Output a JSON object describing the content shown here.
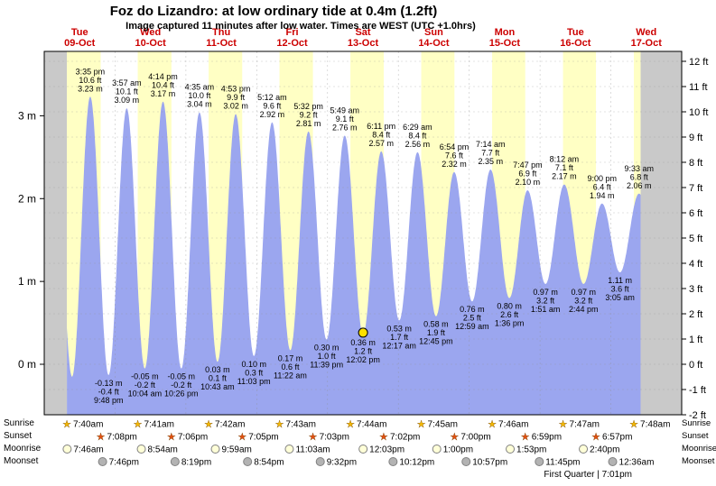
{
  "title": "Foz do Lizandro: at low ordinary tide at 0.4m (1.2ft)",
  "subtitle": "Image captured 11 minutes after low water. Times are WEST (UTC +1.0hrs)",
  "colors": {
    "outside": "#c9c9c9",
    "night_band": "#ffffff",
    "day_band": "#ffffc4",
    "tide_fill": "#9ba6ef",
    "grid": "#8f8f8f",
    "day_label": "#cc0000",
    "current_marker": "#ffe000",
    "sunrise_star": "#f2b705",
    "sunset_star": "#e04f10",
    "moonrise_fill": "#ffffd8",
    "moonset_fill": "#b3b3b3"
  },
  "chart_data": {
    "type": "area",
    "title": "Foz do Lizandro: at low ordinary tide at 0.4m (1.2ft)",
    "x_axis": {
      "days": [
        {
          "name": "Tue",
          "date": "09-Oct"
        },
        {
          "name": "Wed",
          "date": "10-Oct"
        },
        {
          "name": "Thu",
          "date": "11-Oct"
        },
        {
          "name": "Fri",
          "date": "12-Oct"
        },
        {
          "name": "Sat",
          "date": "13-Oct"
        },
        {
          "name": "Sun",
          "date": "14-Oct"
        },
        {
          "name": "Mon",
          "date": "15-Oct"
        },
        {
          "name": "Tue",
          "date": "16-Oct"
        },
        {
          "name": "Wed",
          "date": "17-Oct"
        }
      ]
    },
    "y_axis_left": {
      "unit": "m",
      "ticks": [
        0,
        1,
        2,
        3
      ]
    },
    "y_axis_right": {
      "unit": "ft",
      "min": -2,
      "max": 12
    },
    "data_start": {
      "day": 9,
      "time": "07:40"
    },
    "data_end": {
      "day": 17,
      "time": "10:05"
    },
    "tide_events": [
      {
        "type": "high",
        "day": 9,
        "time": "15:35",
        "height_m": 3.23,
        "labels": [
          "3:35 pm",
          "10.6 ft",
          "3.23 m"
        ]
      },
      {
        "type": "low",
        "day": 9,
        "time": "21:48",
        "height_m": -0.13,
        "labels": [
          "-0.13 m",
          "-0.4 ft",
          "9:48 pm"
        ]
      },
      {
        "type": "high",
        "day": 10,
        "time": "03:57",
        "height_m": 3.09,
        "labels": [
          "3:57 am",
          "10.1 ft",
          "3.09 m"
        ]
      },
      {
        "type": "low",
        "day": 10,
        "time": "10:04",
        "height_m": -0.05,
        "labels": [
          "-0.05 m",
          "-0.2 ft",
          "10:04 am"
        ]
      },
      {
        "type": "high",
        "day": 10,
        "time": "16:14",
        "height_m": 3.17,
        "labels": [
          "4:14 pm",
          "10.4 ft",
          "3.17 m"
        ]
      },
      {
        "type": "low",
        "day": 10,
        "time": "22:26",
        "height_m": -0.05,
        "labels": [
          "-0.05 m",
          "-0.2 ft",
          "10:26 pm"
        ]
      },
      {
        "type": "high",
        "day": 11,
        "time": "04:35",
        "height_m": 3.04,
        "labels": [
          "4:35 am",
          "10.0 ft",
          "3.04 m"
        ]
      },
      {
        "type": "low",
        "day": 11,
        "time": "10:43",
        "height_m": 0.03,
        "labels": [
          "0.03 m",
          "0.1 ft",
          "10:43 am"
        ]
      },
      {
        "type": "high",
        "day": 11,
        "time": "16:53",
        "height_m": 3.02,
        "labels": [
          "4:53 pm",
          "9.9 ft",
          "3.02 m"
        ]
      },
      {
        "type": "low",
        "day": 11,
        "time": "23:03",
        "height_m": 0.1,
        "labels": [
          "0.10 m",
          "0.3 ft",
          "11:03 pm"
        ]
      },
      {
        "type": "high",
        "day": 12,
        "time": "05:12",
        "height_m": 2.92,
        "labels": [
          "5:12 am",
          "9.6 ft",
          "2.92 m"
        ]
      },
      {
        "type": "low",
        "day": 12,
        "time": "11:22",
        "height_m": 0.17,
        "labels": [
          "0.17 m",
          "0.6 ft",
          "11:22 am"
        ]
      },
      {
        "type": "high",
        "day": 12,
        "time": "17:32",
        "height_m": 2.81,
        "labels": [
          "5:32 pm",
          "9.2 ft",
          "2.81 m"
        ]
      },
      {
        "type": "low",
        "day": 12,
        "time": "23:39",
        "height_m": 0.3,
        "labels": [
          "0.30 m",
          "1.0 ft",
          "11:39 pm"
        ]
      },
      {
        "type": "high",
        "day": 13,
        "time": "05:49",
        "height_m": 2.76,
        "labels": [
          "5:49 am",
          "9.1 ft",
          "2.76 m"
        ]
      },
      {
        "type": "low",
        "day": 13,
        "time": "12:02",
        "height_m": 0.36,
        "labels": [
          "0.36 m",
          "1.2 ft",
          "12:02 pm"
        ]
      },
      {
        "type": "high",
        "day": 13,
        "time": "18:11",
        "height_m": 2.57,
        "labels": [
          "6:11 pm",
          "8.4 ft",
          "2.57 m"
        ]
      },
      {
        "type": "low",
        "day": 14,
        "time": "00:17",
        "height_m": 0.53,
        "labels": [
          "0.53 m",
          "1.7 ft",
          "12:17 am"
        ]
      },
      {
        "type": "high",
        "day": 14,
        "time": "06:29",
        "height_m": 2.56,
        "labels": [
          "6:29 am",
          "8.4 ft",
          "2.56 m"
        ]
      },
      {
        "type": "low",
        "day": 14,
        "time": "12:45",
        "height_m": 0.58,
        "labels": [
          "0.58 m",
          "1.9 ft",
          "12:45 pm"
        ]
      },
      {
        "type": "high",
        "day": 14,
        "time": "18:54",
        "height_m": 2.32,
        "labels": [
          "6:54 pm",
          "7.6 ft",
          "2.32 m"
        ]
      },
      {
        "type": "low",
        "day": 15,
        "time": "00:59",
        "height_m": 0.76,
        "labels": [
          "0.76 m",
          "2.5 ft",
          "12:59 am"
        ]
      },
      {
        "type": "high",
        "day": 15,
        "time": "07:14",
        "height_m": 2.35,
        "labels": [
          "7:14 am",
          "7.7 ft",
          "2.35 m"
        ]
      },
      {
        "type": "low",
        "day": 15,
        "time": "13:36",
        "height_m": 0.8,
        "labels": [
          "0.80 m",
          "2.6 ft",
          "1:36 pm"
        ]
      },
      {
        "type": "high",
        "day": 15,
        "time": "19:47",
        "height_m": 2.1,
        "labels": [
          "7:47 pm",
          "6.9 ft",
          "2.10 m"
        ]
      },
      {
        "type": "low",
        "day": 16,
        "time": "01:51",
        "height_m": 0.97,
        "labels": [
          "0.97 m",
          "3.2 ft",
          "1:51 am"
        ]
      },
      {
        "type": "high",
        "day": 16,
        "time": "08:12",
        "height_m": 2.17,
        "labels": [
          "8:12 am",
          "7.1 ft",
          "2.17 m"
        ]
      },
      {
        "type": "low",
        "day": 16,
        "time": "14:44",
        "height_m": 0.97,
        "labels": [
          "0.97 m",
          "3.2 ft",
          "2:44 pm"
        ]
      },
      {
        "type": "high",
        "day": 16,
        "time": "21:00",
        "height_m": 1.94,
        "labels": [
          "9:00 pm",
          "6.4 ft",
          "1.94 m"
        ]
      },
      {
        "type": "low",
        "day": 17,
        "time": "03:05",
        "height_m": 1.11,
        "labels": [
          "1.11 m",
          "3.6 ft",
          "3:05 am"
        ]
      },
      {
        "type": "high",
        "day": 17,
        "time": "09:33",
        "height_m": 2.06,
        "labels": [
          "9:33 am",
          "6.8 ft",
          "2.06 m"
        ]
      }
    ],
    "current_event_index": 15,
    "offscreen_curve_padding": [
      {
        "day": 9,
        "time": "03:15",
        "height_m": 3.05
      },
      {
        "day": 9,
        "time": "09:25",
        "height_m": -0.15
      },
      {
        "day": 17,
        "time": "16:00",
        "height_m": 1.2
      }
    ]
  },
  "astro": {
    "rows": [
      {
        "id": "sunrise",
        "label": "Sunrise",
        "icon": "sunrise-star-icon",
        "events": [
          {
            "day": 9,
            "time": "07:40",
            "label": "7:40am"
          },
          {
            "day": 10,
            "time": "07:41",
            "label": "7:41am"
          },
          {
            "day": 11,
            "time": "07:42",
            "label": "7:42am"
          },
          {
            "day": 12,
            "time": "07:43",
            "label": "7:43am"
          },
          {
            "day": 13,
            "time": "07:44",
            "label": "7:44am"
          },
          {
            "day": 14,
            "time": "07:45",
            "label": "7:45am"
          },
          {
            "day": 15,
            "time": "07:46",
            "label": "7:46am"
          },
          {
            "day": 16,
            "time": "07:47",
            "label": "7:47am"
          },
          {
            "day": 17,
            "time": "07:48",
            "label": "7:48am"
          }
        ]
      },
      {
        "id": "sunset",
        "label": "Sunset",
        "icon": "sunset-star-icon",
        "events": [
          {
            "day": 9,
            "time": "19:08",
            "label": "7:08pm"
          },
          {
            "day": 10,
            "time": "19:06",
            "label": "7:06pm"
          },
          {
            "day": 11,
            "time": "19:05",
            "label": "7:05pm"
          },
          {
            "day": 12,
            "time": "19:03",
            "label": "7:03pm"
          },
          {
            "day": 13,
            "time": "19:02",
            "label": "7:02pm"
          },
          {
            "day": 14,
            "time": "19:00",
            "label": "7:00pm"
          },
          {
            "day": 15,
            "time": "18:59",
            "label": "6:59pm"
          },
          {
            "day": 16,
            "time": "18:57",
            "label": "6:57pm"
          }
        ]
      },
      {
        "id": "moonrise",
        "label": "Moonrise",
        "icon": "moonrise-circle-icon",
        "events": [
          {
            "day": 9,
            "time": "07:46",
            "label": "7:46am"
          },
          {
            "day": 10,
            "time": "08:54",
            "label": "8:54am"
          },
          {
            "day": 11,
            "time": "09:59",
            "label": "9:59am"
          },
          {
            "day": 12,
            "time": "11:03",
            "label": "11:03am"
          },
          {
            "day": 13,
            "time": "12:03",
            "label": "12:03pm"
          },
          {
            "day": 14,
            "time": "13:00",
            "label": "1:00pm"
          },
          {
            "day": 15,
            "time": "13:53",
            "label": "1:53pm"
          },
          {
            "day": 16,
            "time": "14:40",
            "label": "2:40pm"
          }
        ]
      },
      {
        "id": "moonset",
        "label": "Moonset",
        "icon": "moonset-circle-icon",
        "events": [
          {
            "day": 9,
            "time": "19:46",
            "label": "7:46pm"
          },
          {
            "day": 10,
            "time": "20:19",
            "label": "8:19pm"
          },
          {
            "day": 11,
            "time": "20:54",
            "label": "8:54pm"
          },
          {
            "day": 12,
            "time": "21:32",
            "label": "9:32pm"
          },
          {
            "day": 13,
            "time": "22:12",
            "label": "10:12pm"
          },
          {
            "day": 14,
            "time": "22:57",
            "label": "10:57pm"
          },
          {
            "day": 15,
            "time": "23:45",
            "label": "11:45pm"
          },
          {
            "day": 17,
            "time": "00:36",
            "label": "12:36am"
          }
        ]
      }
    ],
    "moon_phase": "First Quarter | 7:01pm"
  }
}
